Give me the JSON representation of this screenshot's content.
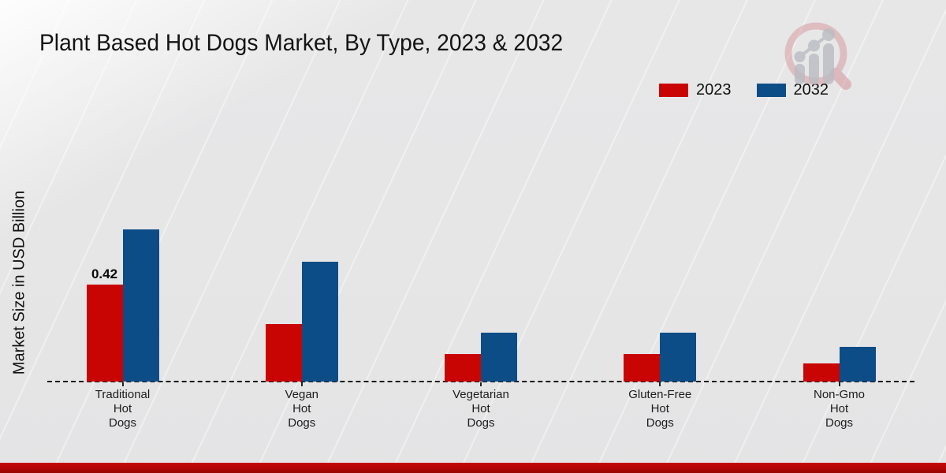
{
  "chart_data": {
    "type": "bar",
    "title": "Plant Based Hot Dogs Market, By Type, 2023 & 2032",
    "xlabel": "",
    "ylabel": "Market Size in USD Billion",
    "categories": [
      "Traditional Hot Dogs",
      "Vegan Hot Dogs",
      "Vegetarian Hot Dogs",
      "Gluten-Free Hot Dogs",
      "Non-Gmo Hot Dogs"
    ],
    "series": [
      {
        "name": "2023",
        "color": "#c90504",
        "values": [
          0.42,
          0.25,
          0.12,
          0.12,
          0.08
        ]
      },
      {
        "name": "2032",
        "color": "#0d4d87",
        "values": [
          0.66,
          0.52,
          0.21,
          0.21,
          0.15
        ]
      }
    ],
    "bar_value_labels": [
      {
        "category_index": 0,
        "series_index": 0,
        "label": "0.42"
      }
    ],
    "ylim": [
      0,
      0.75
    ],
    "y_axis_ticks_visible": false,
    "baseline_style": "black dashed line",
    "grid": false,
    "legend_position": "top-right",
    "background_color": "#e8e8e9",
    "footer_accent_color": "#b40505"
  },
  "watermark": {
    "name": "magnifier-growth-chart-logo",
    "glass_color": "#d4858d",
    "bars_color": "#b9bcc2"
  }
}
